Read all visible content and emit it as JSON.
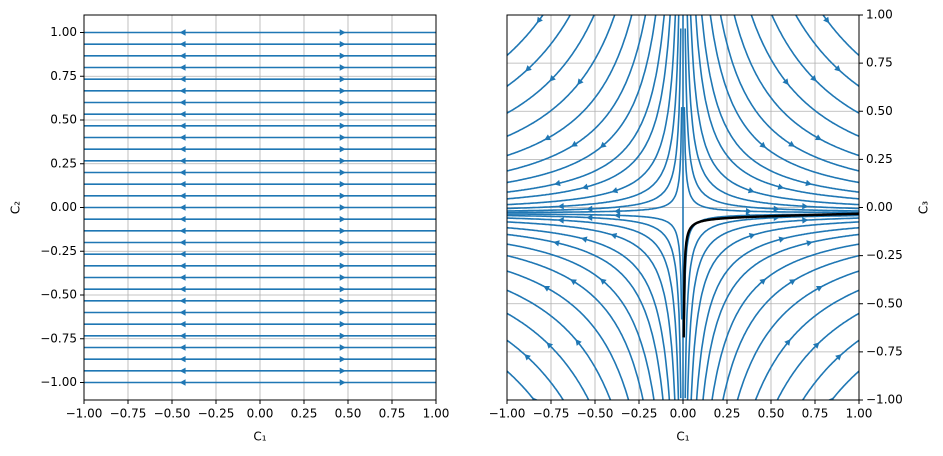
{
  "chart_data": [
    {
      "type": "streamplot",
      "xlabel": "C₁",
      "ylabel": "C₂",
      "color": "#1f77b4",
      "grid": true,
      "yaxis_side": "left",
      "xlim": [
        -1,
        1
      ],
      "ylim": [
        -1.1,
        1.1
      ],
      "xticks": [
        {
          "value": -1,
          "label": "−1.00"
        },
        {
          "value": -0.75,
          "label": "−0.75"
        },
        {
          "value": -0.5,
          "label": "−0.50"
        },
        {
          "value": -0.25,
          "label": "−0.25"
        },
        {
          "value": 0,
          "label": "0.00"
        },
        {
          "value": 0.25,
          "label": "0.25"
        },
        {
          "value": 0.5,
          "label": "0.50"
        },
        {
          "value": 0.75,
          "label": "0.75"
        },
        {
          "value": 1,
          "label": "1.00"
        }
      ],
      "yticks": [
        {
          "value": -1,
          "label": "−1.00"
        },
        {
          "value": -0.75,
          "label": "−0.75"
        },
        {
          "value": -0.5,
          "label": "−0.50"
        },
        {
          "value": -0.25,
          "label": "−0.25"
        },
        {
          "value": 0,
          "label": "0.00"
        },
        {
          "value": 0.25,
          "label": "0.25"
        },
        {
          "value": 0.5,
          "label": "0.50"
        },
        {
          "value": 0.75,
          "label": "0.75"
        },
        {
          "value": 1,
          "label": "1.00"
        }
      ]
    },
    {
      "type": "streamplot",
      "xlabel": "C₁",
      "ylabel": "C₃",
      "color": "#1f77b4",
      "grid": true,
      "yaxis_side": "right",
      "xlim": [
        -1,
        1
      ],
      "ylim": [
        -1,
        1
      ],
      "xticks": [
        {
          "value": -1,
          "label": "−1.00"
        },
        {
          "value": -0.75,
          "label": "−0.75"
        },
        {
          "value": -0.5,
          "label": "−0.50"
        },
        {
          "value": -0.25,
          "label": "−0.25"
        },
        {
          "value": 0,
          "label": "0.00"
        },
        {
          "value": 0.25,
          "label": "0.25"
        },
        {
          "value": 0.5,
          "label": "0.50"
        },
        {
          "value": 0.75,
          "label": "0.75"
        },
        {
          "value": 1,
          "label": "1.00"
        }
      ],
      "yticks": [
        {
          "value": -1,
          "label": "−1.00"
        },
        {
          "value": -0.75,
          "label": "−0.75"
        },
        {
          "value": -0.5,
          "label": "−0.50"
        },
        {
          "value": -0.25,
          "label": "−0.25"
        },
        {
          "value": 0,
          "label": "0.00"
        },
        {
          "value": 0.25,
          "label": "0.25"
        },
        {
          "value": 0.5,
          "label": "0.50"
        },
        {
          "value": 0.75,
          "label": "0.75"
        },
        {
          "value": 1,
          "label": "1.00"
        }
      ]
    }
  ]
}
